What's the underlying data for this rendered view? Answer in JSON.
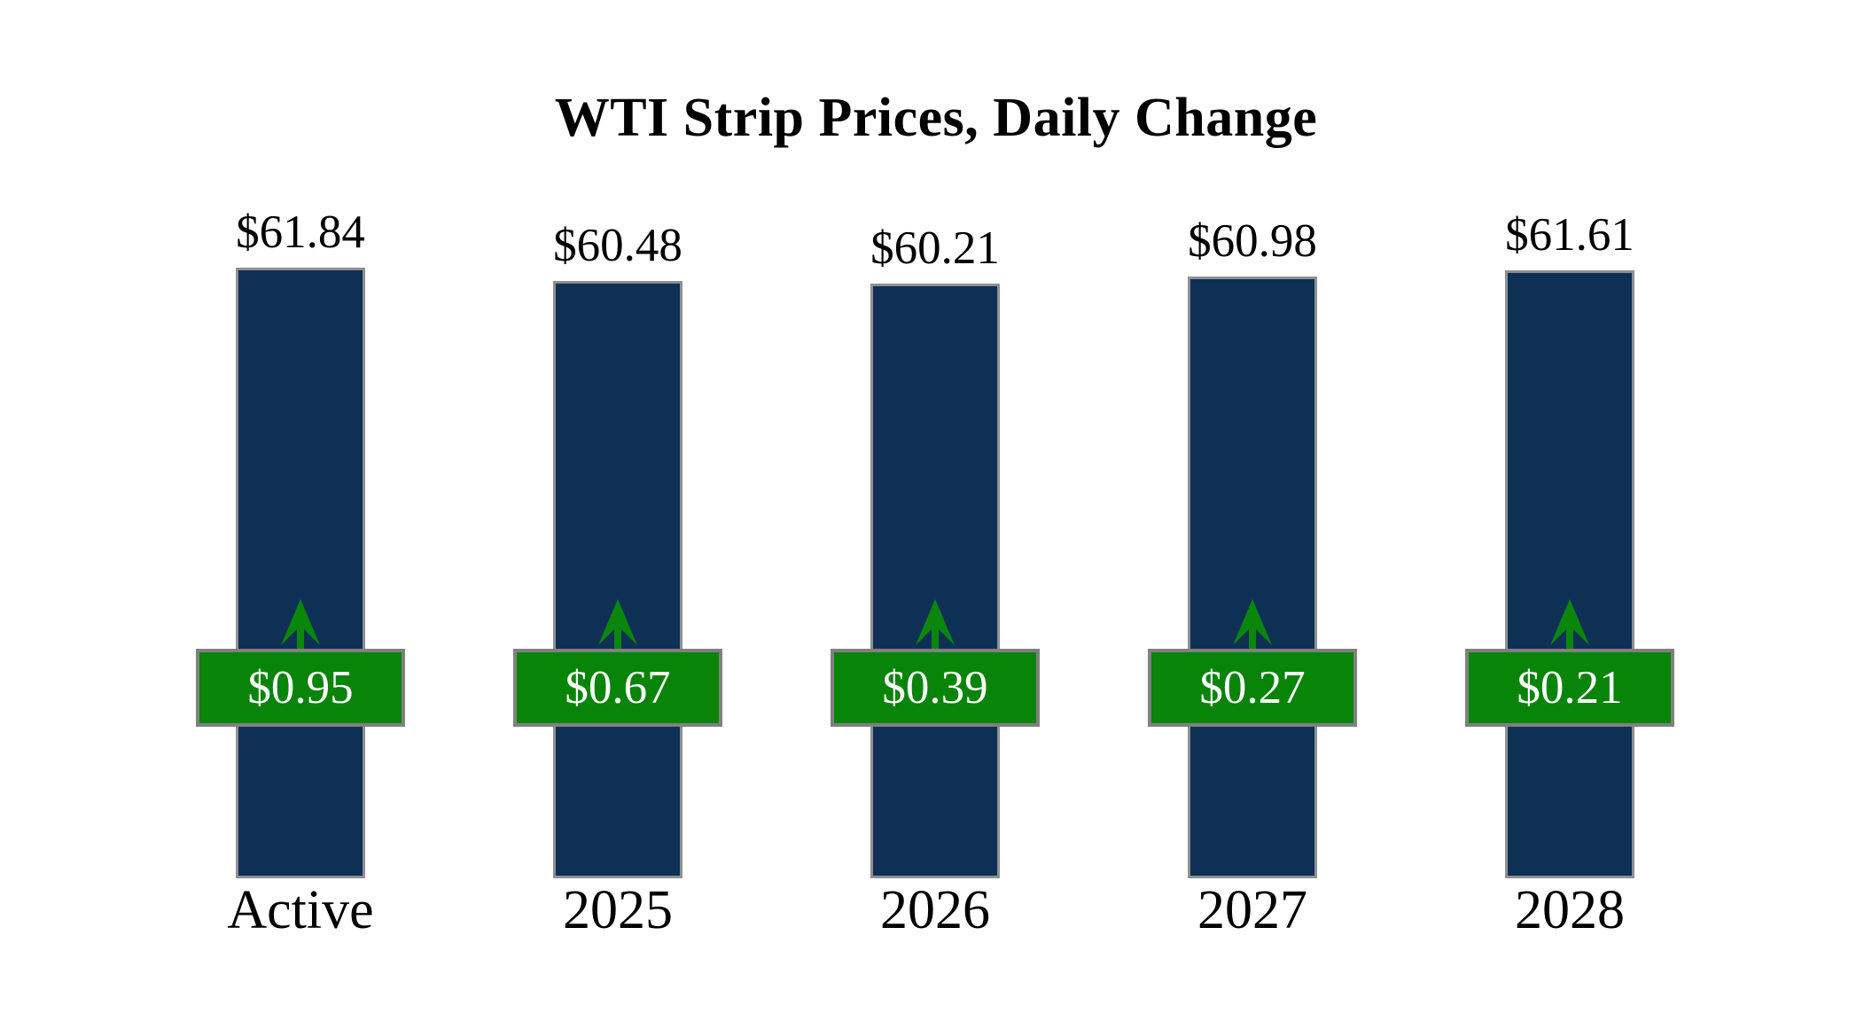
{
  "page": {
    "background_color": "#ffffff"
  },
  "chart_data": {
    "type": "bar",
    "title": "WTI Strip Prices, Daily Change",
    "categories": [
      "Active",
      "2025",
      "2026",
      "2027",
      "2028"
    ],
    "series": [
      {
        "name": "Strip Price",
        "values": [
          61.84,
          60.48,
          60.21,
          60.98,
          61.61
        ],
        "labels": [
          "$61.84",
          "$60.48",
          "$60.21",
          "$60.98",
          "$61.61"
        ],
        "label_position": "above-bar"
      },
      {
        "name": "Daily Change",
        "values": [
          0.95,
          0.67,
          0.39,
          0.27,
          0.21
        ],
        "labels": [
          "$0.95",
          "$0.67",
          "$0.39",
          "$0.27",
          "$0.21"
        ],
        "direction": "up",
        "marker": "green-up-arrow-badge"
      }
    ],
    "xlabel": "",
    "ylabel": "",
    "ylim": [
      0,
      62
    ],
    "grid": false,
    "legend": false,
    "colors": {
      "bar_fill": "#0f3055",
      "bar_border": "#8e9091",
      "badge_fill": "#088408",
      "badge_border": "#808080",
      "arrow": "#0a870a",
      "label_text": "#000000",
      "badge_text": "#ffffff"
    }
  }
}
